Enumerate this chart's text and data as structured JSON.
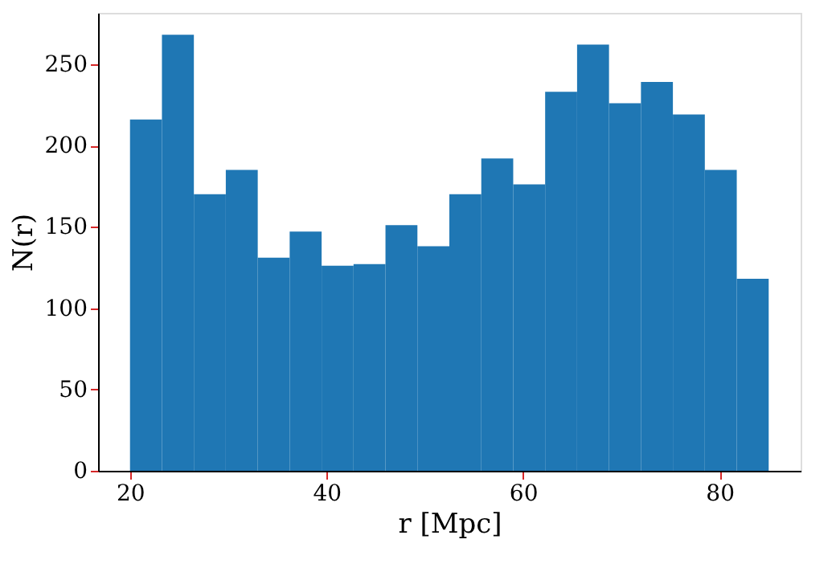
{
  "chart_data": {
    "type": "histogram",
    "xlabel": "r [Mpc]",
    "ylabel": "N(r)",
    "bins": [
      20,
      23.25,
      26.5,
      29.75,
      33,
      36.25,
      39.5,
      42.75,
      46,
      49.25,
      52.5,
      55.75,
      59,
      62.25,
      65.5,
      68.75,
      72,
      75.25,
      78.5,
      81.75,
      85
    ],
    "values": [
      216,
      268,
      170,
      185,
      131,
      147,
      126,
      127,
      151,
      138,
      170,
      192,
      176,
      233,
      262,
      226,
      239,
      219,
      185,
      118
    ],
    "color": "#1f77b4",
    "xlim": [
      16.75,
      88.25
    ],
    "xticks": [
      20,
      40,
      60,
      80
    ],
    "ylim": [
      0,
      281.5
    ],
    "yticks": [
      0,
      50,
      100,
      150,
      200,
      250
    ],
    "grid": false
  }
}
